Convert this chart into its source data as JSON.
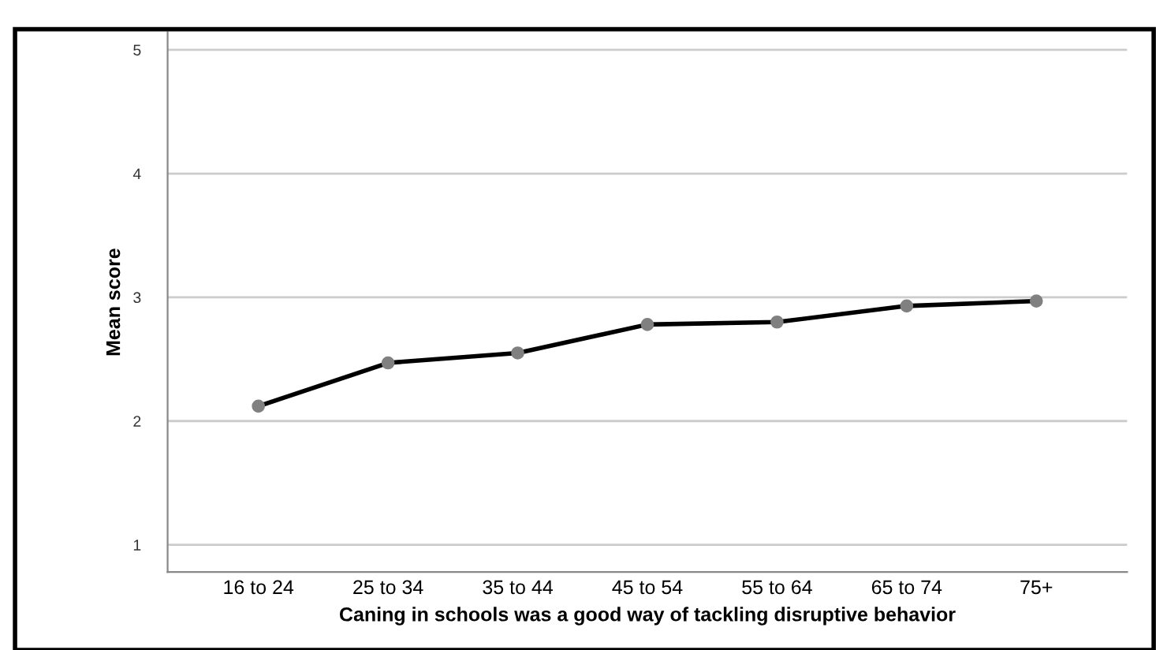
{
  "chart_data": {
    "type": "line",
    "xlabel": "Caning in schools was a good way of tackling disruptive behavior",
    "ylabel": "Mean score",
    "categories": [
      "16 to 24",
      "25 to 34",
      "35 to 44",
      "45 to 54",
      "55 to 64",
      "65 to 74",
      "75+"
    ],
    "series": [
      {
        "color": "#000000",
        "values": [
          2.12,
          2.47,
          2.55,
          2.78,
          2.8,
          2.93,
          2.97
        ]
      }
    ],
    "marker": "circle",
    "line_style": "solid",
    "ylim": [
      0.78,
      5.14
    ],
    "yticks": [
      1,
      2,
      3,
      4,
      5
    ],
    "grid": "y",
    "legend": false
  }
}
